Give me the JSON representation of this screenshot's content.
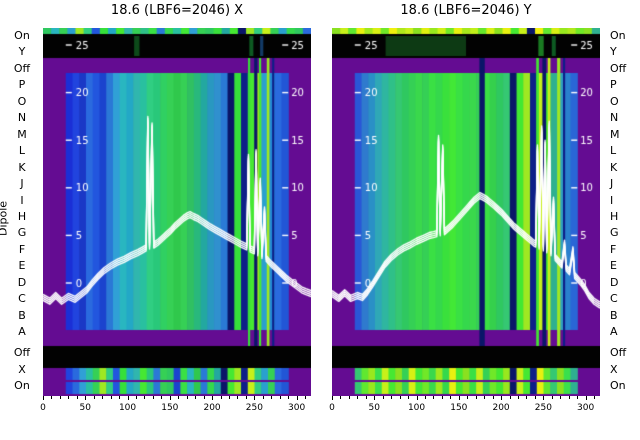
{
  "dipole_label": "Dipole",
  "side_labels": [
    "On",
    "Y",
    "Off",
    "P",
    "O",
    "N",
    "M",
    "L",
    "K",
    "J",
    "I",
    "H",
    "G",
    "F",
    "E",
    "D",
    "C",
    "B",
    "A",
    "",
    "Off",
    "X",
    "On"
  ],
  "value_ticks": [
    25,
    20,
    15,
    10,
    5,
    0
  ],
  "x_ticks": [
    0,
    50,
    100,
    150,
    200,
    250,
    300
  ],
  "colors": {
    "frame": "#640c92",
    "band": "#020202",
    "trace": "#ffffff"
  },
  "chart_data": [
    {
      "type": "heatmap",
      "title": "18.6 (LBF6=2046) X",
      "x_range": [
        0,
        317
      ],
      "value_scale": [
        0,
        25
      ],
      "row_labels_ref": "side_labels",
      "main_cols": [
        "#1b2fd6",
        "#2144de",
        "#1a38c6",
        "#2a6ade",
        "#2256de",
        "#1b43ce",
        "#2b78d6",
        "#30a0d6",
        "#29b6c0",
        "#23a8c6",
        "#30b6ae",
        "#29c0a0",
        "#30ce82",
        "#29c87a",
        "#30d062",
        "#36d055",
        "#30c84c",
        "#36d055",
        "#30c062",
        "#29b87c",
        "#23a8a0",
        "#2998c0",
        "#3090ce",
        "#2a7ad6",
        "#0a1668",
        "#36e03a",
        "#0d1f88",
        "#46e832",
        "#9fe822",
        "#2aa0ce",
        "#2389d6",
        "#2a6ade",
        "#2256d6"
      ],
      "top_strip": [
        "#2fc860",
        "#29b6c0",
        "#36d055",
        "#2aa0ce",
        "#9fe822",
        "#30ce82",
        "#2256de",
        "#36e03a",
        "#23a8c6",
        "#46e832",
        "#30b6ae",
        "#36d055",
        "#2fc088",
        "#3ae044",
        "#2a7ad6",
        "#35d84c",
        "#29c0a0",
        "#42e836",
        "#30a0d6",
        "#36d055",
        "#2fc860",
        "#3ae03c",
        "#23a8a0",
        "#46e832",
        "#0a1668",
        "#9fe822",
        "#30ce82",
        "#c8f01a",
        "#36d055",
        "#2aa0ce",
        "#35d84c",
        "#2fc860",
        "#2a6ade"
      ],
      "bottom_strip": [
        "#2144de",
        "#2a6ade",
        "#30a0d6",
        "#29c0a0",
        "#36d055",
        "#9fe822",
        "#30ce82",
        "#2256de",
        "#36e03a",
        "#23a8c6",
        "#30b6ae",
        "#46e832",
        "#29c87a",
        "#2b78d6",
        "#36d055",
        "#2fc860",
        "#1b43ce",
        "#3ae044",
        "#29b6c0",
        "#30c84c",
        "#2a7ad6",
        "#35d84c",
        "#23a8a0",
        "#0a1668",
        "#46e832",
        "#9fe822",
        "#0d1f88",
        "#c8f01a",
        "#30ce82",
        "#2aa0ce",
        "#36d055",
        "#2a6ade",
        "#2256d6"
      ],
      "black_band_cols": [
        {
          "x": 0.34,
          "w": 0.02,
          "c": "#0d4a1a"
        },
        {
          "x": 0.77,
          "w": 0.015,
          "c": "#0d5a22"
        },
        {
          "x": 0.81,
          "w": 0.012,
          "c": "#123a66"
        }
      ],
      "full_cols": [
        {
          "x": 0.765,
          "w": 0.008,
          "c": "#36e03a"
        },
        {
          "x": 0.788,
          "w": 0.012,
          "c": "#0a1668"
        },
        {
          "x": 0.806,
          "w": 0.008,
          "c": "#46e832"
        },
        {
          "x": 0.835,
          "w": 0.01,
          "c": "#9fe822"
        },
        {
          "x": 0.855,
          "w": 0.008,
          "c": "#0d1f88"
        }
      ],
      "trace": [
        [
          0,
          -1.2
        ],
        [
          8,
          -1.6
        ],
        [
          15,
          -1.0
        ],
        [
          22,
          -1.6
        ],
        [
          30,
          -1.1
        ],
        [
          38,
          -1.4
        ],
        [
          45,
          -0.9
        ],
        [
          52,
          -0.4
        ],
        [
          58,
          0.3
        ],
        [
          65,
          1.0
        ],
        [
          72,
          1.6
        ],
        [
          80,
          2.1
        ],
        [
          88,
          2.5
        ],
        [
          96,
          2.8
        ],
        [
          104,
          3.2
        ],
        [
          112,
          3.5
        ],
        [
          118,
          3.8
        ],
        [
          122,
          4.0
        ],
        [
          124,
          17.5
        ],
        [
          126,
          4.2
        ],
        [
          129,
          16.8
        ],
        [
          131,
          4.3
        ],
        [
          136,
          4.6
        ],
        [
          141,
          5.0
        ],
        [
          146,
          5.4
        ],
        [
          151,
          5.8
        ],
        [
          156,
          6.3
        ],
        [
          161,
          6.7
        ],
        [
          166,
          7.1
        ],
        [
          171,
          7.4
        ],
        [
          174,
          7.5
        ],
        [
          178,
          7.3
        ],
        [
          183,
          7.1
        ],
        [
          188,
          6.8
        ],
        [
          193,
          6.5
        ],
        [
          198,
          6.2
        ],
        [
          204,
          5.9
        ],
        [
          210,
          5.6
        ],
        [
          216,
          5.3
        ],
        [
          222,
          5.0
        ],
        [
          228,
          4.7
        ],
        [
          234,
          4.4
        ],
        [
          239,
          4.2
        ],
        [
          241,
          4.1
        ],
        [
          243,
          13.5
        ],
        [
          245,
          3.9
        ],
        [
          250,
          3.7
        ],
        [
          252,
          14.0
        ],
        [
          254,
          3.5
        ],
        [
          257,
          11.0
        ],
        [
          259,
          3.2
        ],
        [
          262,
          8.0
        ],
        [
          264,
          2.9
        ],
        [
          270,
          2.3
        ],
        [
          276,
          1.8
        ],
        [
          282,
          1.3
        ],
        [
          288,
          0.8
        ],
        [
          294,
          0.4
        ],
        [
          300,
          0.0
        ],
        [
          306,
          -0.4
        ],
        [
          311,
          -0.6
        ],
        [
          317,
          -0.8
        ]
      ]
    },
    {
      "type": "heatmap",
      "title": "18.6 (LBF6=2046) Y",
      "x_range": [
        0,
        317
      ],
      "value_scale": [
        0,
        25
      ],
      "row_labels_ref": "side_labels",
      "main_cols": [
        "#2a56d6",
        "#2f7ace",
        "#2a90c6",
        "#2fa8b6",
        "#2fb6a0",
        "#2fc088",
        "#35c872",
        "#2fc860",
        "#35d055",
        "#3ad84c",
        "#35d055",
        "#3ae044",
        "#35d84c",
        "#3ae03c",
        "#42e836",
        "#3ae044",
        "#35d84c",
        "#3ad84c",
        "#35d055",
        "#3ae044",
        "#35d04c",
        "#2fc860",
        "#35c872",
        "#0a1668",
        "#42e832",
        "#9fe822",
        "#0d1f88",
        "#c8f01a",
        "#42e832",
        "#2fb090",
        "#2f9fc0",
        "#2a80ce",
        "#2a66d6"
      ],
      "top_strip": [
        "#8ae020",
        "#c8f01a",
        "#60e830",
        "#e8f010",
        "#a0e81e",
        "#d8f014",
        "#70e828",
        "#f0f00e",
        "#b0e81c",
        "#c8f01a",
        "#8ae020",
        "#e0f010",
        "#98e81e",
        "#d0f016",
        "#70e828",
        "#e8f010",
        "#a8e81c",
        "#c0f01a",
        "#66e82c",
        "#d8f014",
        "#8ae020",
        "#e8f010",
        "#46e832",
        "#c8f01a",
        "#0a1668",
        "#f0f00e",
        "#60e830",
        "#d8f014",
        "#98e81e",
        "#b0e81c",
        "#70e828",
        "#8ae020",
        "#2fb090"
      ],
      "bottom_strip": [
        "#35c872",
        "#60e830",
        "#98e81e",
        "#3ae04c",
        "#c8f01a",
        "#46e832",
        "#8ae020",
        "#35d055",
        "#d8f014",
        "#42e836",
        "#70e828",
        "#3ad84c",
        "#a0e81e",
        "#35d84c",
        "#e8f010",
        "#46e832",
        "#8ae020",
        "#3ae044",
        "#c8f01a",
        "#35d055",
        "#70e828",
        "#42e832",
        "#98e81e",
        "#0a1668",
        "#c8f01a",
        "#46e832",
        "#0d1f88",
        "#e8f010",
        "#60e830",
        "#35c872",
        "#8ae020",
        "#3ae04c",
        "#2fb090"
      ],
      "black_band_cols": [
        {
          "x": 0.2,
          "w": 0.3,
          "c": "#0d3a14"
        },
        {
          "x": 0.77,
          "w": 0.02,
          "c": "#1a7a22"
        },
        {
          "x": 0.82,
          "w": 0.015,
          "c": "#0d5a22"
        }
      ],
      "full_cols": [
        {
          "x": 0.55,
          "w": 0.02,
          "c": "#0a1668"
        },
        {
          "x": 0.762,
          "w": 0.01,
          "c": "#42e832"
        },
        {
          "x": 0.785,
          "w": 0.014,
          "c": "#0a1668"
        },
        {
          "x": 0.805,
          "w": 0.01,
          "c": "#c8f01a"
        },
        {
          "x": 0.84,
          "w": 0.012,
          "c": "#9fe822"
        },
        {
          "x": 0.862,
          "w": 0.008,
          "c": "#0d1f88"
        }
      ],
      "trace": [
        [
          0,
          -0.8
        ],
        [
          8,
          -1.3
        ],
        [
          15,
          -0.7
        ],
        [
          22,
          -1.3
        ],
        [
          30,
          -1.0
        ],
        [
          36,
          -1.2
        ],
        [
          42,
          -0.6
        ],
        [
          48,
          0.2
        ],
        [
          55,
          1.2
        ],
        [
          62,
          2.2
        ],
        [
          70,
          3.0
        ],
        [
          78,
          3.6
        ],
        [
          85,
          4.0
        ],
        [
          92,
          4.3
        ],
        [
          100,
          4.7
        ],
        [
          108,
          5.0
        ],
        [
          115,
          5.3
        ],
        [
          120,
          5.4
        ],
        [
          124,
          5.5
        ],
        [
          126,
          15.5
        ],
        [
          128,
          5.6
        ],
        [
          131,
          14.5
        ],
        [
          133,
          5.7
        ],
        [
          138,
          6.1
        ],
        [
          143,
          6.5
        ],
        [
          148,
          7.0
        ],
        [
          153,
          7.5
        ],
        [
          158,
          8.0
        ],
        [
          163,
          8.5
        ],
        [
          168,
          9.0
        ],
        [
          172,
          9.3
        ],
        [
          175,
          9.5
        ],
        [
          179,
          9.3
        ],
        [
          183,
          9.1
        ],
        [
          187,
          8.8
        ],
        [
          191,
          8.5
        ],
        [
          196,
          8.1
        ],
        [
          201,
          7.7
        ],
        [
          206,
          7.2
        ],
        [
          211,
          6.7
        ],
        [
          215,
          6.3
        ],
        [
          219,
          6.0
        ],
        [
          223,
          5.7
        ],
        [
          227,
          5.4
        ],
        [
          231,
          5.1
        ],
        [
          235,
          4.8
        ],
        [
          239,
          4.5
        ],
        [
          241,
          4.4
        ],
        [
          243,
          14.5
        ],
        [
          245,
          4.2
        ],
        [
          248,
          16.5
        ],
        [
          250,
          4.0
        ],
        [
          252,
          15.0
        ],
        [
          254,
          3.8
        ],
        [
          257,
          17.0
        ],
        [
          259,
          3.5
        ],
        [
          262,
          9.0
        ],
        [
          264,
          3.0
        ],
        [
          268,
          2.6
        ],
        [
          272,
          2.2
        ],
        [
          275,
          4.5
        ],
        [
          277,
          1.9
        ],
        [
          281,
          1.5
        ],
        [
          285,
          3.8
        ],
        [
          287,
          1.1
        ],
        [
          291,
          0.7
        ],
        [
          295,
          0.3
        ],
        [
          299,
          -0.2
        ],
        [
          304,
          -1.0
        ],
        [
          310,
          -1.6
        ],
        [
          317,
          -2.0
        ]
      ]
    }
  ]
}
